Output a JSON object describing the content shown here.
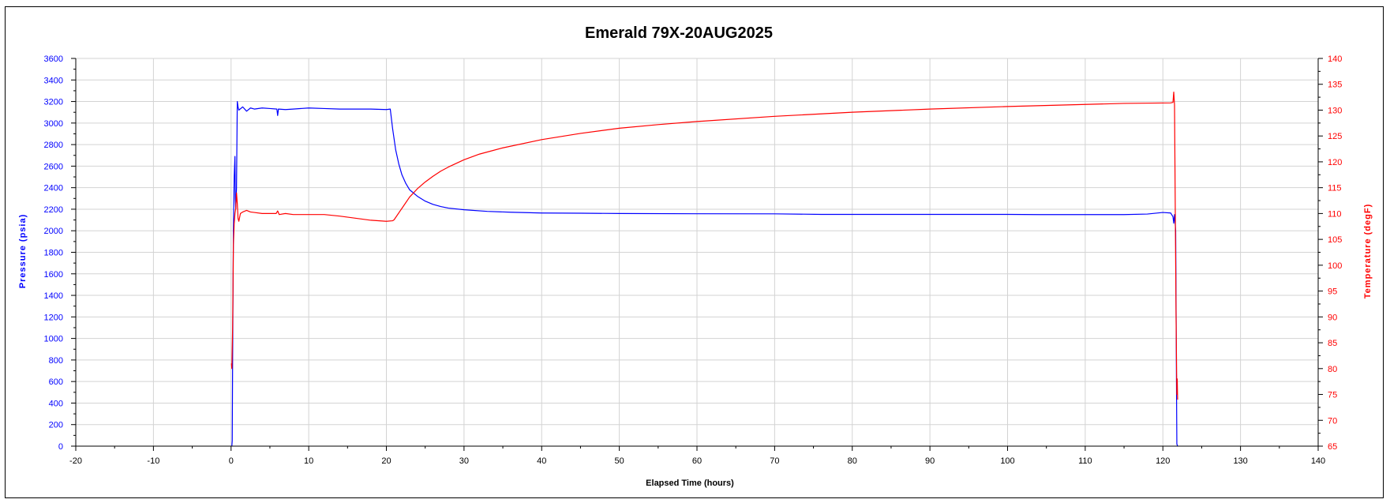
{
  "chart_data": {
    "type": "line",
    "title": "Emerald 79X-20AUG2025",
    "xlabel": "Elapsed Time (hours)",
    "ylabel_left": "Pressure (psia)",
    "ylabel_right": "Temperature (degF)",
    "xlim": [
      -20,
      140
    ],
    "ylim_left": [
      0,
      3600
    ],
    "ylim_right": [
      65,
      140
    ],
    "x_ticks": [
      -20,
      -10,
      0,
      10,
      20,
      30,
      40,
      50,
      60,
      70,
      80,
      90,
      100,
      110,
      120,
      130,
      140
    ],
    "y_ticks_left": [
      0,
      200,
      400,
      600,
      800,
      1000,
      1200,
      1400,
      1600,
      1800,
      2000,
      2200,
      2400,
      2600,
      2800,
      3000,
      3200,
      3400,
      3600
    ],
    "y_ticks_right": [
      65,
      70,
      75,
      80,
      85,
      90,
      95,
      100,
      105,
      110,
      115,
      120,
      125,
      130,
      135,
      140
    ],
    "grid": true,
    "colors": {
      "pressure": "#0000ff",
      "temperature": "#ff0000",
      "grid": "#d3d3d3"
    },
    "series": [
      {
        "axis": "left",
        "color": "#0000ff",
        "points": [
          [
            0.1,
            0
          ],
          [
            0.15,
            50
          ],
          [
            0.2,
            800
          ],
          [
            0.3,
            2000
          ],
          [
            0.4,
            2500
          ],
          [
            0.5,
            2690
          ],
          [
            0.55,
            2300
          ],
          [
            0.6,
            2200
          ],
          [
            0.7,
            2400
          ],
          [
            0.8,
            3200
          ],
          [
            0.9,
            3150
          ],
          [
            1.0,
            3120
          ],
          [
            1.5,
            3150
          ],
          [
            2,
            3110
          ],
          [
            2.5,
            3140
          ],
          [
            3,
            3130
          ],
          [
            4,
            3140
          ],
          [
            5,
            3135
          ],
          [
            5.9,
            3130
          ],
          [
            6.0,
            3070
          ],
          [
            6.1,
            3130
          ],
          [
            7,
            3125
          ],
          [
            8,
            3130
          ],
          [
            10,
            3140
          ],
          [
            12,
            3135
          ],
          [
            14,
            3130
          ],
          [
            16,
            3130
          ],
          [
            18,
            3130
          ],
          [
            20,
            3125
          ],
          [
            20.5,
            3130
          ],
          [
            20.8,
            2950
          ],
          [
            21.2,
            2750
          ],
          [
            21.6,
            2620
          ],
          [
            22,
            2520
          ],
          [
            22.5,
            2440
          ],
          [
            23,
            2380
          ],
          [
            24,
            2320
          ],
          [
            25,
            2275
          ],
          [
            26,
            2245
          ],
          [
            27,
            2225
          ],
          [
            28,
            2210
          ],
          [
            30,
            2195
          ],
          [
            33,
            2180
          ],
          [
            36,
            2172
          ],
          [
            40,
            2165
          ],
          [
            45,
            2163
          ],
          [
            50,
            2160
          ],
          [
            60,
            2158
          ],
          [
            70,
            2157
          ],
          [
            76,
            2152
          ],
          [
            80,
            2152
          ],
          [
            90,
            2152
          ],
          [
            100,
            2152
          ],
          [
            104,
            2150
          ],
          [
            108,
            2150
          ],
          [
            115,
            2150
          ],
          [
            118,
            2155
          ],
          [
            120,
            2170
          ],
          [
            121,
            2165
          ],
          [
            121.3,
            2130
          ],
          [
            121.4,
            2070
          ],
          [
            121.5,
            2150
          ],
          [
            121.65,
            2000
          ],
          [
            121.75,
            600
          ],
          [
            121.8,
            20
          ],
          [
            121.9,
            0
          ]
        ]
      },
      {
        "axis": "right",
        "color": "#ff0000",
        "points": [
          [
            0.05,
            81
          ],
          [
            0.1,
            80
          ],
          [
            0.2,
            88
          ],
          [
            0.3,
            104
          ],
          [
            0.4,
            108
          ],
          [
            0.5,
            110
          ],
          [
            0.6,
            111
          ],
          [
            0.7,
            114
          ],
          [
            0.8,
            112
          ],
          [
            0.9,
            109
          ],
          [
            1.0,
            108.5
          ],
          [
            1.2,
            110
          ],
          [
            1.5,
            110.3
          ],
          [
            2.0,
            110.6
          ],
          [
            2.5,
            110.3
          ],
          [
            3,
            110.2
          ],
          [
            4,
            110
          ],
          [
            5,
            110
          ],
          [
            5.8,
            110
          ],
          [
            6.0,
            110.5
          ],
          [
            6.2,
            109.8
          ],
          [
            7,
            110
          ],
          [
            8,
            109.8
          ],
          [
            10,
            109.8
          ],
          [
            12,
            109.8
          ],
          [
            14,
            109.5
          ],
          [
            16,
            109.1
          ],
          [
            18,
            108.7
          ],
          [
            20,
            108.5
          ],
          [
            20.8,
            108.6
          ],
          [
            21,
            108.8
          ],
          [
            22,
            111
          ],
          [
            23,
            113.2
          ],
          [
            24,
            114.8
          ],
          [
            25,
            116.1
          ],
          [
            26,
            117.2
          ],
          [
            27,
            118.2
          ],
          [
            28,
            119
          ],
          [
            30,
            120.4
          ],
          [
            32,
            121.5
          ],
          [
            35,
            122.7
          ],
          [
            40,
            124.3
          ],
          [
            45,
            125.5
          ],
          [
            50,
            126.5
          ],
          [
            55,
            127.2
          ],
          [
            60,
            127.8
          ],
          [
            70,
            128.8
          ],
          [
            80,
            129.6
          ],
          [
            90,
            130.2
          ],
          [
            100,
            130.7
          ],
          [
            110,
            131.1
          ],
          [
            115,
            131.3
          ],
          [
            121,
            131.4
          ],
          [
            121.3,
            131.5
          ],
          [
            121.4,
            133.5
          ],
          [
            121.5,
            131
          ],
          [
            121.6,
            110
          ],
          [
            121.7,
            90
          ],
          [
            121.8,
            75
          ],
          [
            121.85,
            78
          ],
          [
            121.9,
            74
          ]
        ]
      }
    ]
  }
}
